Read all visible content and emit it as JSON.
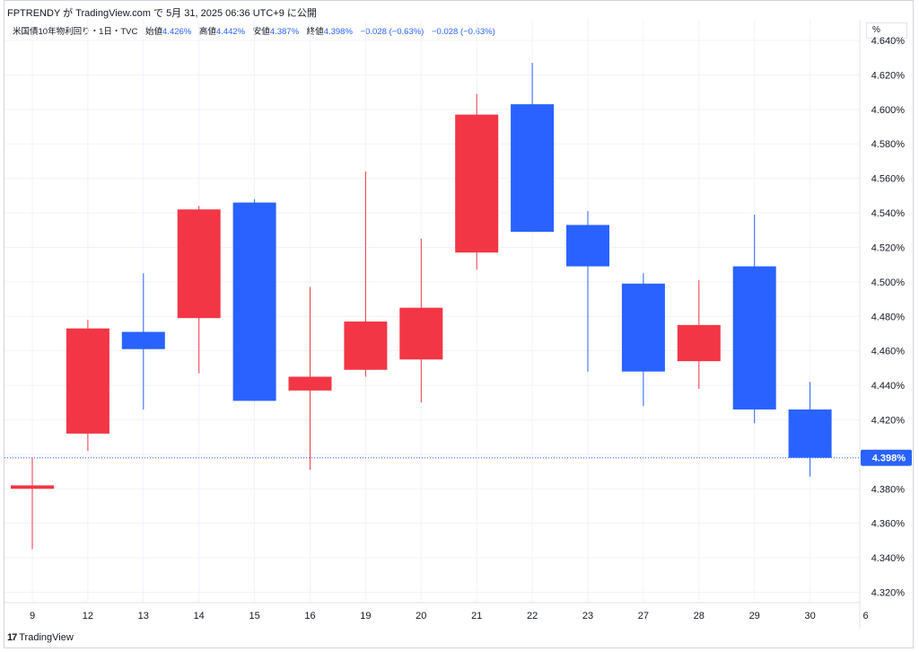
{
  "header": {
    "publish_line": "FPTRENDY が TradingView.com で 5月 31, 2025 06:36 UTC+9 に公開"
  },
  "legend": {
    "symbol": "米国債10年物利回り・1日・TVC",
    "open_label": "始値",
    "open_value": "4.426%",
    "high_label": "高値",
    "high_value": "4.442%",
    "low_label": "安値",
    "low_value": "4.387%",
    "close_label": "終値",
    "close_value": "4.398%",
    "change": "−0.028 (−0.63%)",
    "change2": "−0.028 (−0.63%)"
  },
  "scale_button": "%",
  "footer": {
    "brand": "TradingView",
    "logo": "17"
  },
  "colors": {
    "up": "#f23645",
    "down": "#2962ff",
    "price_line": "#2962ff"
  },
  "chart_data": {
    "type": "candlestick",
    "x_tick_labels": [
      "9",
      "12",
      "13",
      "14",
      "15",
      "16",
      "19",
      "20",
      "21",
      "22",
      "23",
      "27",
      "28",
      "29",
      "30",
      "6"
    ],
    "y_ticks": [
      4.32,
      4.34,
      4.36,
      4.38,
      4.4,
      4.42,
      4.44,
      4.46,
      4.48,
      4.5,
      4.52,
      4.54,
      4.56,
      4.58,
      4.6,
      4.62,
      4.64
    ],
    "y_tick_labels": [
      "4.320%",
      "4.340%",
      "4.360%",
      "4.380%",
      "4.400%",
      "4.420%",
      "4.440%",
      "4.460%",
      "4.480%",
      "4.500%",
      "4.520%",
      "4.540%",
      "4.560%",
      "4.580%",
      "4.600%",
      "4.620%",
      "4.640%"
    ],
    "ylim": [
      4.314,
      4.652
    ],
    "last_price_label": "4.398%",
    "last_price": 4.398,
    "candles": [
      {
        "date": "9",
        "open": 4.38,
        "high": 4.398,
        "low": 4.345,
        "close": 4.382
      },
      {
        "date": "12",
        "open": 4.412,
        "high": 4.478,
        "low": 4.402,
        "close": 4.473
      },
      {
        "date": "13",
        "open": 4.471,
        "high": 4.505,
        "low": 4.426,
        "close": 4.461
      },
      {
        "date": "14",
        "open": 4.479,
        "high": 4.544,
        "low": 4.447,
        "close": 4.542
      },
      {
        "date": "15",
        "open": 4.546,
        "high": 4.548,
        "low": 4.431,
        "close": 4.431
      },
      {
        "date": "16",
        "open": 4.437,
        "high": 4.497,
        "low": 4.391,
        "close": 4.445
      },
      {
        "date": "19",
        "open": 4.449,
        "high": 4.564,
        "low": 4.445,
        "close": 4.477
      },
      {
        "date": "20",
        "open": 4.455,
        "high": 4.525,
        "low": 4.43,
        "close": 4.485
      },
      {
        "date": "21",
        "open": 4.517,
        "high": 4.609,
        "low": 4.507,
        "close": 4.597
      },
      {
        "date": "22",
        "open": 4.603,
        "high": 4.627,
        "low": 4.529,
        "close": 4.529
      },
      {
        "date": "23",
        "open": 4.533,
        "high": 4.541,
        "low": 4.448,
        "close": 4.509
      },
      {
        "date": "27",
        "open": 4.499,
        "high": 4.505,
        "low": 4.428,
        "close": 4.448
      },
      {
        "date": "28",
        "open": 4.454,
        "high": 4.501,
        "low": 4.438,
        "close": 4.475
      },
      {
        "date": "29",
        "open": 4.509,
        "high": 4.539,
        "low": 4.418,
        "close": 4.426
      },
      {
        "date": "30",
        "open": 4.426,
        "high": 4.442,
        "low": 4.387,
        "close": 4.398
      }
    ]
  }
}
